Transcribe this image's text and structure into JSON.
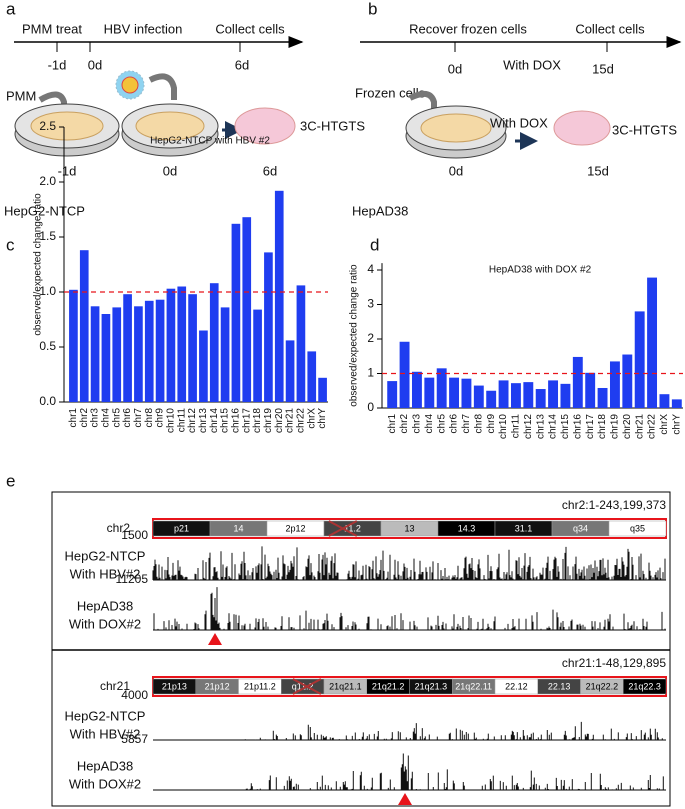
{
  "panels": {
    "a": {
      "label": "a",
      "timeline": [
        "PMM treat",
        "HBV infection",
        "Collect cells"
      ],
      "ticks": [
        "-1d",
        "0d",
        "6d"
      ],
      "reagent": "PMM",
      "steps": [
        "-1d",
        "0d",
        "6d"
      ],
      "assay": "3C-HTGTS",
      "cell_line": "HepG2-NTCP"
    },
    "b": {
      "label": "b",
      "timeline": [
        "Recover frozen cells",
        "Collect cells"
      ],
      "timeline_note": "With DOX",
      "ticks": [
        "0d",
        "15d"
      ],
      "reagent": "Frozen cells",
      "treatment": "With DOX",
      "steps": [
        "0d",
        "15d"
      ],
      "assay": "3C-HTGTS",
      "cell_line": "HepAD38"
    },
    "c": {
      "label": "c"
    },
    "d": {
      "label": "d"
    },
    "e": {
      "label": "e",
      "regions": [
        {
          "coords": "chr2:1-243,199,373",
          "chrom": "chr2",
          "bands": [
            "p21",
            "14",
            "2p12",
            "11.2",
            "13",
            "14.3",
            "31.1",
            "q34",
            "q35"
          ],
          "tracks": [
            {
              "name": "HepG2-NTCP",
              "condition": "With HBV#2",
              "scale": 1500
            },
            {
              "name": "HepAD38",
              "condition": "With DOX#2",
              "scale": 11205
            }
          ]
        },
        {
          "coords": "chr21:1-48,129,895",
          "chrom": "chr21",
          "bands": [
            "21p13",
            "21p12",
            "21p11.2",
            "q11.2",
            "21q21.1",
            "21q21.2",
            "21q21.3",
            "21q22.11",
            "22.12",
            "22.13",
            "21q22.2",
            "21q22.3"
          ],
          "tracks": [
            {
              "name": "HepG2-NTCP",
              "condition": "With HBV#2",
              "scale": 4000
            },
            {
              "name": "HepAD38",
              "condition": "With DOX#2",
              "scale": 5857
            }
          ]
        }
      ]
    }
  },
  "chart_data": [
    {
      "type": "bar",
      "title": "HepG2-NTCP with HBV #2",
      "y_label": "observed/expected change ratio",
      "color": "#1f3df0",
      "categories": [
        "chr1",
        "chr2",
        "chr3",
        "chr4",
        "chr5",
        "chr6",
        "chr7",
        "chr8",
        "chr9",
        "chr10",
        "chr11",
        "chr12",
        "chr13",
        "chr14",
        "chr15",
        "chr16",
        "chr17",
        "chr18",
        "chr19",
        "chr20",
        "chr21",
        "chr22",
        "chrX",
        "chrY"
      ],
      "values": [
        1.02,
        1.38,
        0.87,
        0.8,
        0.86,
        0.98,
        0.87,
        0.92,
        0.93,
        1.03,
        1.05,
        0.98,
        0.65,
        1.08,
        0.86,
        1.62,
        1.68,
        0.84,
        1.36,
        1.92,
        0.56,
        1.06,
        0.46,
        0.22
      ],
      "ylim": [
        0,
        2.5
      ],
      "yticks": [
        {
          "value": 0,
          "label": "0.0"
        },
        {
          "value": 0.5,
          "label": "0.5"
        },
        {
          "value": 1,
          "label": "1.0"
        },
        {
          "value": 1.5,
          "label": "1.5"
        },
        {
          "value": 2,
          "label": "2.0"
        },
        {
          "value": 2.5,
          "label": "2.5"
        }
      ],
      "ref_line": 1,
      "ref_color": "#e8141b"
    },
    {
      "type": "bar",
      "title": "HepAD38 with DOX #2",
      "y_label": "observed/expected change ratio",
      "color": "#1f3df0",
      "categories": [
        "chr1",
        "chr2",
        "chr3",
        "chr4",
        "chr5",
        "chr6",
        "chr7",
        "chr8",
        "chr9",
        "chr10",
        "chr11",
        "chr12",
        "chr13",
        "chr14",
        "chr15",
        "chr16",
        "chr17",
        "chr18",
        "chr19",
        "chr20",
        "chr21",
        "chr22",
        "chrX",
        "chrY"
      ],
      "values": [
        0.78,
        1.92,
        1.05,
        0.88,
        1.15,
        0.88,
        0.85,
        0.65,
        0.5,
        0.8,
        0.72,
        0.75,
        0.55,
        0.8,
        0.7,
        1.48,
        1.02,
        0.58,
        1.35,
        1.55,
        2.8,
        3.78,
        0.4,
        0.25
      ],
      "ylim": [
        0,
        4.2
      ],
      "yticks": [
        0,
        1,
        2,
        3,
        4
      ],
      "ref_line": 1,
      "ref_color": "#e8141b"
    }
  ]
}
